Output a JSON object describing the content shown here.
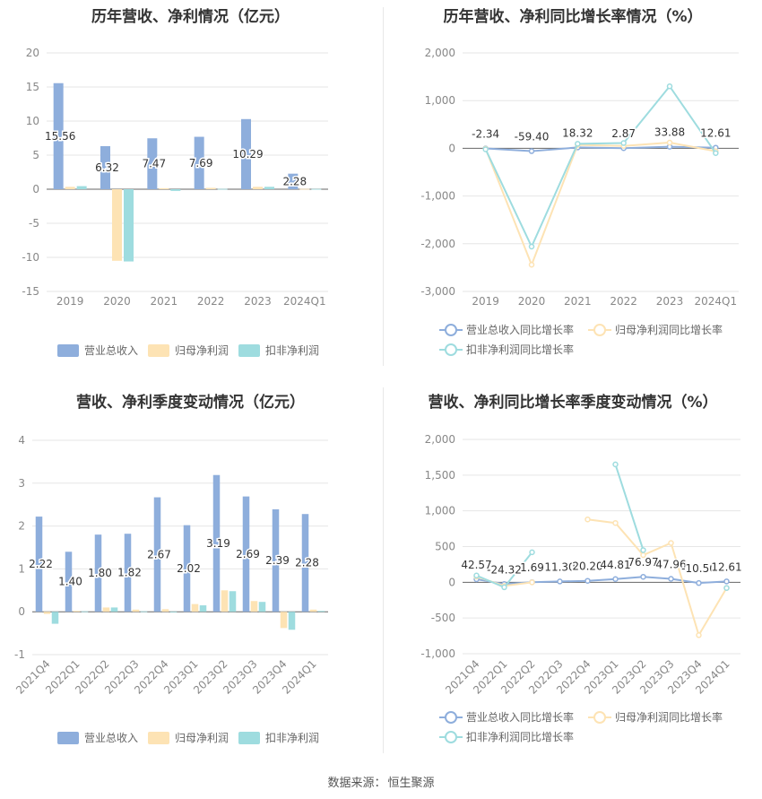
{
  "footer": {
    "label": "数据来源：",
    "source": "恒生聚源"
  },
  "chart_data": [
    {
      "type": "bar",
      "title": "历年营收、净利情况（亿元）",
      "categories": [
        "2019",
        "2020",
        "2021",
        "2022",
        "2023",
        "2024Q1"
      ],
      "series": [
        {
          "name": "营业总收入",
          "values": [
            15.56,
            6.32,
            7.47,
            7.69,
            10.29,
            2.28
          ],
          "labels": [
            "15.56",
            "6.32",
            "7.47",
            "7.69",
            "10.29",
            "2.28"
          ]
        },
        {
          "name": "归母净利润",
          "values": [
            0.35,
            -10.5,
            0.15,
            0.2,
            0.35,
            0.05
          ]
        },
        {
          "name": "扣非净利润",
          "values": [
            0.45,
            -10.6,
            -0.25,
            0.05,
            0.35,
            0.04
          ]
        }
      ],
      "ylim": [
        -15,
        20
      ],
      "yticks": [
        "-15",
        "-10",
        "-5",
        "0",
        "5",
        "10",
        "15",
        "20"
      ],
      "ytick_values": [
        -15,
        -10,
        -5,
        0,
        5,
        10,
        15,
        20
      ],
      "colors": [
        "#8eaedc",
        "#fde3b4",
        "#9edcdf"
      ],
      "legend": "bottom",
      "grid": true
    },
    {
      "type": "line",
      "title": "历年营收、净利同比增长率情况（%）",
      "categories": [
        "2019",
        "2020",
        "2021",
        "2022",
        "2023",
        "2024Q1"
      ],
      "series": [
        {
          "name": "营业总收入同比增长率",
          "values": [
            -2.34,
            -59.4,
            18.32,
            2.87,
            33.88,
            12.61
          ],
          "labels": [
            "-2.34",
            "-59.40",
            "18.32",
            "2.87",
            "33.88",
            "12.61"
          ]
        },
        {
          "name": "归母净利润同比增长率",
          "values": [
            -10,
            -2440,
            70,
            50,
            120,
            -60
          ]
        },
        {
          "name": "扣非净利润同比增长率",
          "values": [
            -20,
            -2060,
            95,
            110,
            1300,
            -100
          ]
        }
      ],
      "ylim": [
        -3000,
        2000
      ],
      "yticks": [
        "-3,000",
        "-2,000",
        "-1,000",
        "0",
        "1,000",
        "2,000"
      ],
      "ytick_values": [
        -3000,
        -2000,
        -1000,
        0,
        1000,
        2000
      ],
      "colors": [
        "#8eaedc",
        "#fde3b4",
        "#9edcdf"
      ],
      "legend": "bottom",
      "grid": true
    },
    {
      "type": "bar",
      "title": "营收、净利季度变动情况（亿元）",
      "categories": [
        "2021Q4",
        "2022Q1",
        "2022Q2",
        "2022Q3",
        "2022Q4",
        "2023Q1",
        "2023Q2",
        "2023Q3",
        "2023Q4",
        "2024Q1"
      ],
      "series": [
        {
          "name": "营业总收入",
          "values": [
            2.22,
            1.4,
            1.8,
            1.82,
            2.67,
            2.02,
            3.19,
            2.69,
            2.39,
            2.28
          ],
          "labels": [
            "2.22",
            "1.40",
            "1.80",
            "1.82",
            "2.67",
            "2.02",
            "3.19",
            "2.69",
            "2.39",
            "2.28"
          ]
        },
        {
          "name": "归母净利润",
          "values": [
            -0.05,
            0.02,
            0.1,
            0.05,
            0.06,
            0.18,
            0.5,
            0.25,
            -0.38,
            0.05
          ]
        },
        {
          "name": "扣非净利润",
          "values": [
            -0.28,
            0.01,
            0.1,
            0.01,
            0.0,
            0.15,
            0.48,
            0.23,
            -0.42,
            0.02
          ]
        }
      ],
      "ylim": [
        -1,
        4
      ],
      "yticks": [
        "-1",
        "0",
        "1",
        "2",
        "3",
        "4"
      ],
      "ytick_values": [
        -1,
        0,
        1,
        2,
        3,
        4
      ],
      "colors": [
        "#8eaedc",
        "#fde3b4",
        "#9edcdf"
      ],
      "legend": "bottom",
      "grid": true
    },
    {
      "type": "line",
      "title": "营收、净利同比增长率季度变动情况（%）",
      "categories": [
        "2021Q4",
        "2022Q1",
        "2022Q2",
        "2022Q3",
        "2022Q4",
        "2023Q1",
        "2023Q2",
        "2023Q3",
        "2023Q4",
        "2024Q1"
      ],
      "series": [
        {
          "name": "营业总收入同比增长率",
          "values": [
            42.57,
            -24.32,
            1.69,
            11.3,
            20.2,
            44.81,
            76.97,
            47.96,
            -10.5,
            12.61
          ],
          "labels": [
            "42.57",
            "-24.32",
            "1.69",
            "11.30",
            "20.20",
            "44.81",
            "76.97",
            "47.96",
            "-10.50",
            "12.61"
          ]
        },
        {
          "name": "归母净利润同比增长率",
          "values": [
            80,
            -50,
            0,
            null,
            880,
            830,
            380,
            550,
            -740,
            -80
          ]
        },
        {
          "name": "扣非净利润同比增长率",
          "values": [
            95,
            -70,
            420,
            null,
            null,
            1650,
            450,
            null,
            null,
            -80
          ]
        }
      ],
      "ylim": [
        -1000,
        2000
      ],
      "yticks": [
        "-1,000",
        "-500",
        "0",
        "500",
        "1,000",
        "1,500",
        "2,000"
      ],
      "ytick_values": [
        -1000,
        -500,
        0,
        500,
        1000,
        1500,
        2000
      ],
      "colors": [
        "#8eaedc",
        "#fde3b4",
        "#9edcdf"
      ],
      "legend": "bottom",
      "grid": true
    }
  ]
}
